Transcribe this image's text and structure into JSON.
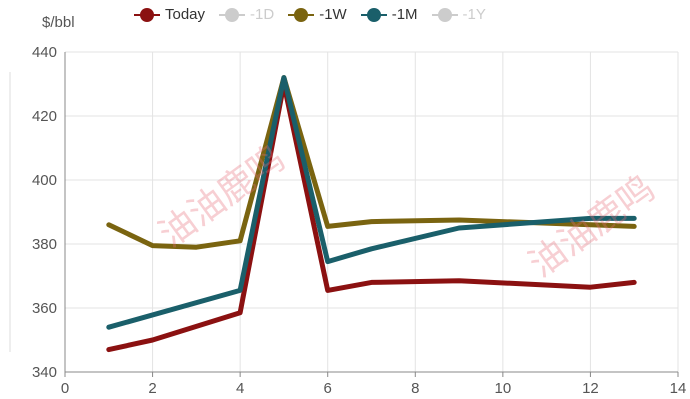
{
  "legend": {
    "items": [
      {
        "label": "Today",
        "color": "#8b1111",
        "active": true
      },
      {
        "label": "-1D",
        "color": "#cccccc",
        "active": false
      },
      {
        "label": "-1W",
        "color": "#7a6410",
        "active": true
      },
      {
        "label": "-1M",
        "color": "#1a5f6a",
        "active": true
      },
      {
        "label": "-1Y",
        "color": "#cccccc",
        "active": false
      }
    ]
  },
  "watermark": "油油鹿鸣",
  "chart_data": {
    "type": "line",
    "ylabel": "$/bbl",
    "xlim": [
      0,
      14
    ],
    "ylim": [
      340,
      440
    ],
    "xticks": [
      0,
      2,
      4,
      6,
      8,
      10,
      12,
      14
    ],
    "yticks": [
      340,
      360,
      380,
      400,
      420,
      440
    ],
    "grid": true,
    "legend_position": "top",
    "series": [
      {
        "name": "Today",
        "color": "#8b1111",
        "x": [
          1,
          2,
          4,
          5,
          6,
          7,
          9,
          12,
          13
        ],
        "y": [
          347,
          350,
          358.5,
          430,
          365.5,
          368,
          368.5,
          366.5,
          368
        ]
      },
      {
        "name": "-1W",
        "color": "#7a6410",
        "x": [
          1,
          2,
          3,
          4,
          5,
          6,
          7,
          9,
          12,
          13
        ],
        "y": [
          386,
          379.5,
          379,
          381,
          432,
          385.5,
          387,
          387.5,
          386,
          385.5
        ]
      },
      {
        "name": "-1M",
        "color": "#1a5f6a",
        "x": [
          1,
          4,
          5,
          6,
          7,
          9,
          12,
          13
        ],
        "y": [
          354,
          365.5,
          432,
          374.5,
          378.5,
          385,
          388,
          388
        ]
      }
    ]
  }
}
